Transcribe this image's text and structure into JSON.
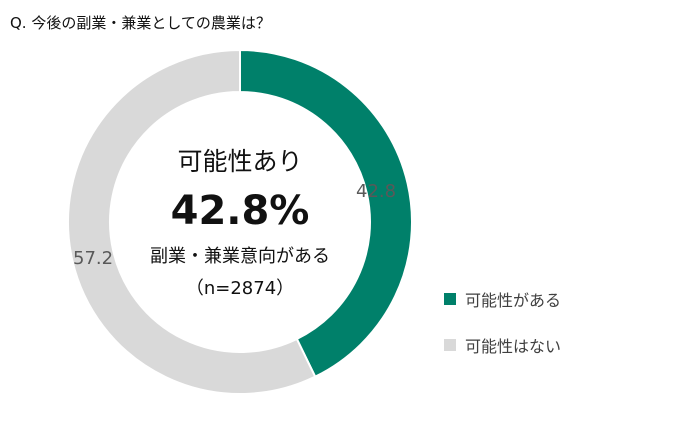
{
  "question_title": "Q. 今後の副業・兼業としての農業は？",
  "center": {
    "line1": "可能性あり",
    "line2": "42.8%",
    "line3": "副業・兼業意向がある",
    "line4": "（n=2874）"
  },
  "colors": {
    "series_1": "#00806A",
    "series_2": "#D9D9D9"
  },
  "chart_data": {
    "type": "pie",
    "variant": "donut",
    "title": "Q. 今後の副業・兼業としての農業は？",
    "categories": [
      "可能性がある",
      "可能性はない"
    ],
    "values": [
      42.8,
      57.2
    ],
    "data_labels": [
      "42.8",
      "57.2"
    ],
    "legend_position": "right"
  }
}
